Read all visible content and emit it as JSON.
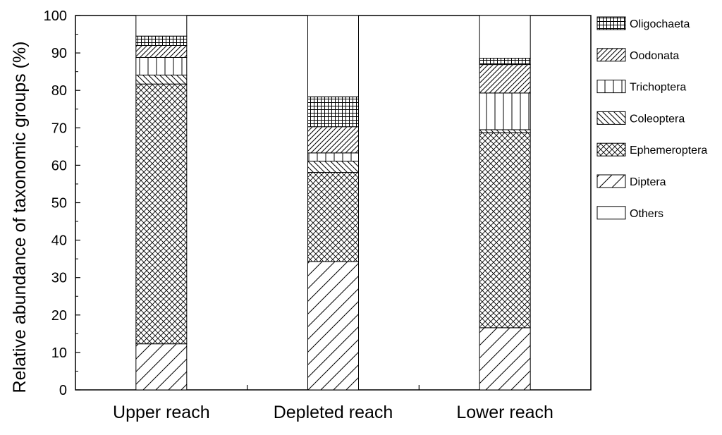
{
  "chart_data": {
    "type": "bar",
    "stacked": true,
    "ylabel": "Relative abundance of taxonomic groups (%)",
    "xlabel": "",
    "ylim": [
      0,
      100
    ],
    "yticks": [
      0,
      10,
      20,
      30,
      40,
      50,
      60,
      70,
      80,
      90,
      100
    ],
    "categories": [
      "Upper reach",
      "Depleted reach",
      "Lower reach"
    ],
    "legend_position": "right",
    "series": [
      {
        "name": "Diptera",
        "pattern": "diag-up-wide",
        "values": [
          12.3,
          34.3,
          16.6
        ]
      },
      {
        "name": "Ephemeroptera",
        "pattern": "crosshatch",
        "values": [
          69.4,
          23.8,
          52.1
        ]
      },
      {
        "name": "Coleoptera",
        "pattern": "diag-down",
        "values": [
          2.4,
          3.0,
          0.8
        ]
      },
      {
        "name": "Trichoptera",
        "pattern": "vertical",
        "values": [
          4.7,
          2.2,
          9.8
        ]
      },
      {
        "name": "Oodonata",
        "pattern": "diag-up",
        "values": [
          3.2,
          7.0,
          7.6
        ]
      },
      {
        "name": "Oligochaeta",
        "pattern": "grid",
        "values": [
          2.5,
          8.0,
          1.7
        ]
      },
      {
        "name": "Others",
        "pattern": "none",
        "values": [
          5.5,
          21.7,
          11.4
        ]
      }
    ],
    "legend_order": [
      "Oligochaeta",
      "Oodonata",
      "Trichoptera",
      "Coleoptera",
      "Ephemeroptera",
      "Diptera",
      "Others"
    ],
    "colors": {
      "stroke": "#000000",
      "fill": "#ffffff"
    }
  }
}
